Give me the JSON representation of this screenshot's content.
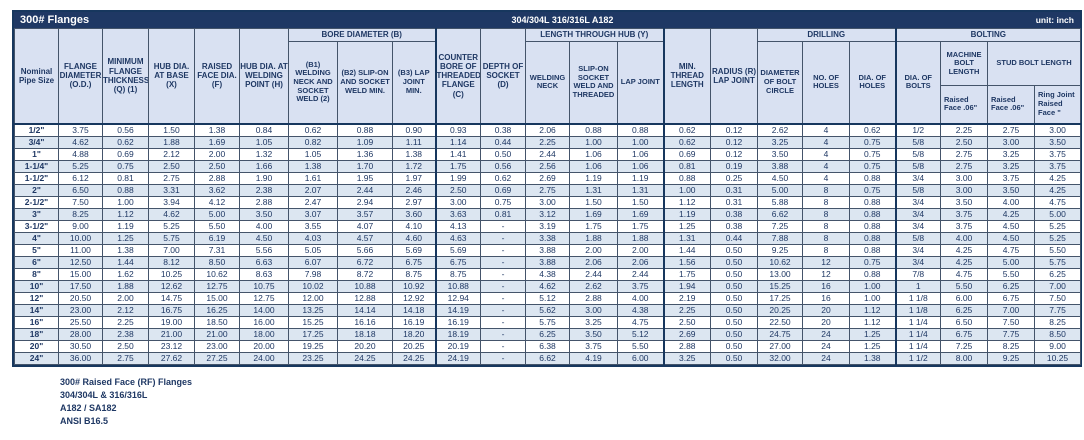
{
  "header": {
    "title": "300# Flanges",
    "material": "304/304L 316/316L A182",
    "unit": "unit: inch"
  },
  "colors": {
    "title_bar": "#1F3864",
    "header_fill": "#D9E1F2",
    "row_stripe": "#DCE6F1",
    "text": "#1F3864",
    "grid": "#44546A",
    "thick_border": "#17375E"
  },
  "table": {
    "groups": {
      "bore": "BORE DIAMETER (B)",
      "length": "LENGTH THROUGH HUB (Y)",
      "drilling": "DRILLING",
      "bolting": "BOLTING"
    },
    "head": {
      "size": "Nominal Pipe Size",
      "od": "FLANGE DIAMETER (O.D.)",
      "q": "MINIMUM FLANGE THICKNESS (Q) (1)",
      "x": "HUB DIA. AT BASE (X)",
      "f": "RAISED FACE DIA. (F)",
      "h": "HUB DIA. AT WELDING POINT (H)",
      "b1": "(B1) WELDING NECK AND SOCKET WELD (2)",
      "b2": "(B2) SLIP-ON AND SOCKET WELD MIN.",
      "b3": "(B3) LAP JOINT MIN.",
      "c": "COUNTER BORE OF THREADED FLANGE (C)",
      "d": "DEPTH OF SOCKET (D)",
      "wn": "WELDING NECK",
      "so": "SLIP-ON SOCKET WELD AND THREADED",
      "lj": "LAP JOINT",
      "mt": "MIN. THREAD LENGTH",
      "r": "RADIUS (R) LAP JOINT",
      "bc": "DIAMETER OF BOLT CIRCLE",
      "nh": "NO. OF HOLES",
      "dh": "DIA. OF HOLES",
      "db": "DIA. OF BOLTS",
      "mbl": "MACHINE BOLT LENGTH",
      "sbl": "STUD BOLT LENGTH"
    },
    "sub": {
      "machine_rf": "Raised Face .06\"",
      "stud_rf": "Raised Face .06\"",
      "stud_rj": "Ring Joint Raised Face \""
    },
    "rows": [
      [
        "1/2\"",
        "3.75",
        "0.56",
        "1.50",
        "1.38",
        "0.84",
        "0.62",
        "0.88",
        "0.90",
        "0.93",
        "0.38",
        "2.06",
        "0.88",
        "0.88",
        "0.62",
        "0.12",
        "2.62",
        "4",
        "0.62",
        "1/2",
        "2.25",
        "2.75",
        "3.00"
      ],
      [
        "3/4\"",
        "4.62",
        "0.62",
        "1.88",
        "1.69",
        "1.05",
        "0.82",
        "1.09",
        "1.11",
        "1.14",
        "0.44",
        "2.25",
        "1.00",
        "1.00",
        "0.62",
        "0.12",
        "3.25",
        "4",
        "0.75",
        "5/8",
        "2.50",
        "3.00",
        "3.50"
      ],
      [
        "1\"",
        "4.88",
        "0.69",
        "2.12",
        "2.00",
        "1.32",
        "1.05",
        "1.36",
        "1.38",
        "1.41",
        "0.50",
        "2.44",
        "1.06",
        "1.06",
        "0.69",
        "0.12",
        "3.50",
        "4",
        "0.75",
        "5/8",
        "2.75",
        "3.25",
        "3.75"
      ],
      [
        "1-1/4\"",
        "5.25",
        "0.75",
        "2.50",
        "2.50",
        "1.66",
        "1.38",
        "1.70",
        "1.72",
        "1.75",
        "0.56",
        "2.56",
        "1.06",
        "1.06",
        "0.81",
        "0.19",
        "3.88",
        "4",
        "0.75",
        "5/8",
        "2.75",
        "3.25",
        "3.75"
      ],
      [
        "1-1/2\"",
        "6.12",
        "0.81",
        "2.75",
        "2.88",
        "1.90",
        "1.61",
        "1.95",
        "1.97",
        "1.99",
        "0.62",
        "2.69",
        "1.19",
        "1.19",
        "0.88",
        "0.25",
        "4.50",
        "4",
        "0.88",
        "3/4",
        "3.00",
        "3.75",
        "4.25"
      ],
      [
        "2\"",
        "6.50",
        "0.88",
        "3.31",
        "3.62",
        "2.38",
        "2.07",
        "2.44",
        "2.46",
        "2.50",
        "0.69",
        "2.75",
        "1.31",
        "1.31",
        "1.00",
        "0.31",
        "5.00",
        "8",
        "0.75",
        "5/8",
        "3.00",
        "3.50",
        "4.25"
      ],
      [
        "2-1/2\"",
        "7.50",
        "1.00",
        "3.94",
        "4.12",
        "2.88",
        "2.47",
        "2.94",
        "2.97",
        "3.00",
        "0.75",
        "3.00",
        "1.50",
        "1.50",
        "1.12",
        "0.31",
        "5.88",
        "8",
        "0.88",
        "3/4",
        "3.50",
        "4.00",
        "4.75"
      ],
      [
        "3\"",
        "8.25",
        "1.12",
        "4.62",
        "5.00",
        "3.50",
        "3.07",
        "3.57",
        "3.60",
        "3.63",
        "0.81",
        "3.12",
        "1.69",
        "1.69",
        "1.19",
        "0.38",
        "6.62",
        "8",
        "0.88",
        "3/4",
        "3.75",
        "4.25",
        "5.00"
      ],
      [
        "3-1/2\"",
        "9.00",
        "1.19",
        "5.25",
        "5.50",
        "4.00",
        "3.55",
        "4.07",
        "4.10",
        "4.13",
        "-",
        "3.19",
        "1.75",
        "1.75",
        "1.25",
        "0.38",
        "7.25",
        "8",
        "0.88",
        "3/4",
        "3.75",
        "4.50",
        "5.25"
      ],
      [
        "4\"",
        "10.00",
        "1.25",
        "5.75",
        "6.19",
        "4.50",
        "4.03",
        "4.57",
        "4.60",
        "4.63",
        "-",
        "3.38",
        "1.88",
        "1.88",
        "1.31",
        "0.44",
        "7.88",
        "8",
        "0.88",
        "5/8",
        "4.00",
        "4.50",
        "5.25"
      ],
      [
        "5\"",
        "11.00",
        "1.38",
        "7.00",
        "7.31",
        "5.56",
        "5.05",
        "5.66",
        "5.69",
        "5.69",
        "-",
        "3.88",
        "2.00",
        "2.00",
        "1.44",
        "0.50",
        "9.25",
        "8",
        "0.88",
        "3/4",
        "4.25",
        "4.75",
        "5.50"
      ],
      [
        "6\"",
        "12.50",
        "1.44",
        "8.12",
        "8.50",
        "6.63",
        "6.07",
        "6.72",
        "6.75",
        "6.75",
        "-",
        "3.88",
        "2.06",
        "2.06",
        "1.56",
        "0.50",
        "10.62",
        "12",
        "0.75",
        "3/4",
        "4.25",
        "5.00",
        "5.75"
      ],
      [
        "8\"",
        "15.00",
        "1.62",
        "10.25",
        "10.62",
        "8.63",
        "7.98",
        "8.72",
        "8.75",
        "8.75",
        "-",
        "4.38",
        "2.44",
        "2.44",
        "1.75",
        "0.50",
        "13.00",
        "12",
        "0.88",
        "7/8",
        "4.75",
        "5.50",
        "6.25"
      ],
      [
        "10\"",
        "17.50",
        "1.88",
        "12.62",
        "12.75",
        "10.75",
        "10.02",
        "10.88",
        "10.92",
        "10.88",
        "-",
        "4.62",
        "2.62",
        "3.75",
        "1.94",
        "0.50",
        "15.25",
        "16",
        "1.00",
        "1",
        "5.50",
        "6.25",
        "7.00"
      ],
      [
        "12\"",
        "20.50",
        "2.00",
        "14.75",
        "15.00",
        "12.75",
        "12.00",
        "12.88",
        "12.92",
        "12.94",
        "-",
        "5.12",
        "2.88",
        "4.00",
        "2.19",
        "0.50",
        "17.25",
        "16",
        "1.00",
        "1 1/8",
        "6.00",
        "6.75",
        "7.50"
      ],
      [
        "14\"",
        "23.00",
        "2.12",
        "16.75",
        "16.25",
        "14.00",
        "13.25",
        "14.14",
        "14.18",
        "14.19",
        "-",
        "5.62",
        "3.00",
        "4.38",
        "2.25",
        "0.50",
        "20.25",
        "20",
        "1.12",
        "1 1/8",
        "6.25",
        "7.00",
        "7.75"
      ],
      [
        "16\"",
        "25.50",
        "2.25",
        "19.00",
        "18.50",
        "16.00",
        "15.25",
        "16.16",
        "16.19",
        "16.19",
        "-",
        "5.75",
        "3.25",
        "4.75",
        "2.50",
        "0.50",
        "22.50",
        "20",
        "1.12",
        "1 1/4",
        "6.50",
        "7.50",
        "8.25"
      ],
      [
        "18\"",
        "28.00",
        "2.38",
        "21.00",
        "21.00",
        "18.00",
        "17.25",
        "18.18",
        "18.20",
        "18.19",
        "-",
        "6.25",
        "3.50",
        "5.12",
        "2.69",
        "0.50",
        "24.75",
        "24",
        "1.25",
        "1 1/4",
        "6.75",
        "7.75",
        "8.50"
      ],
      [
        "20\"",
        "30.50",
        "2.50",
        "23.12",
        "23.00",
        "20.00",
        "19.25",
        "20.20",
        "20.25",
        "20.19",
        "-",
        "6.38",
        "3.75",
        "5.50",
        "2.88",
        "0.50",
        "27.00",
        "24",
        "1.25",
        "1 1/4",
        "7.25",
        "8.25",
        "9.00"
      ],
      [
        "24\"",
        "36.00",
        "2.75",
        "27.62",
        "27.25",
        "24.00",
        "23.25",
        "24.25",
        "24.25",
        "24.19",
        "-",
        "6.62",
        "4.19",
        "6.00",
        "3.25",
        "0.50",
        "32.00",
        "24",
        "1.38",
        "1 1/2",
        "8.00",
        "9.25",
        "10.25"
      ]
    ]
  },
  "footer": {
    "lines": [
      "300# Raised Face (RF) Flanges",
      "304/304L & 316/316L",
      "A182 / SA182",
      "ANSI B16.5"
    ]
  }
}
